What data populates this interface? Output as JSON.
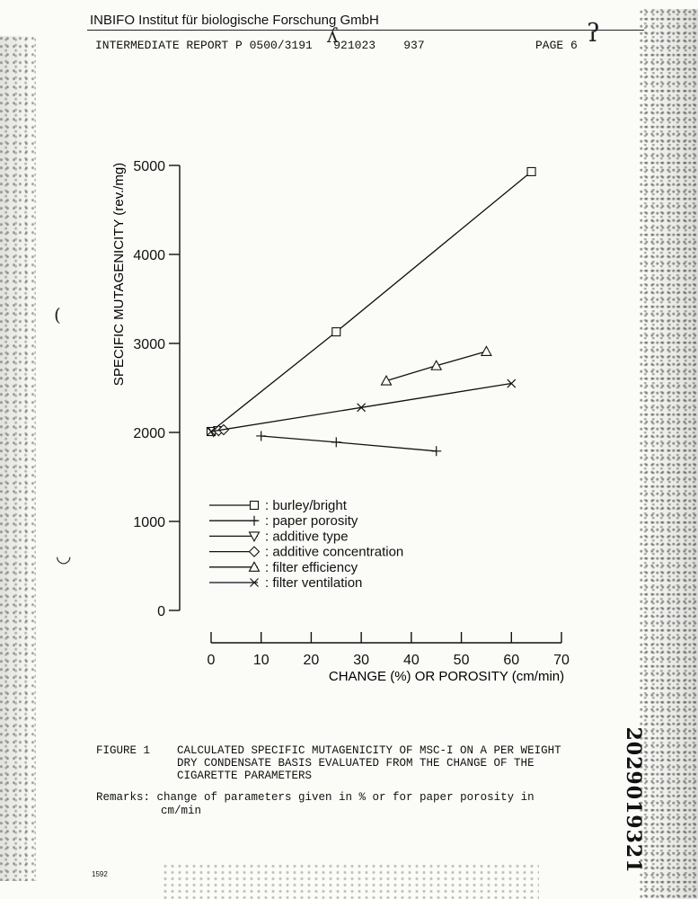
{
  "header": {
    "company": "INBIFO Institut für biologische Forschung GmbH",
    "report": "INTERMEDIATE REPORT P 0500/3191   921023    937",
    "page": "PAGE 6"
  },
  "chart_data": {
    "type": "line",
    "xlabel": "CHANGE (%) OR POROSITY (cm/min)",
    "ylabel": "SPECIFIC MUTAGENICITY (rev./mg)",
    "xlim": [
      0,
      70
    ],
    "ylim": [
      0,
      5000
    ],
    "x_ticks": [
      0,
      10,
      20,
      30,
      40,
      50,
      60,
      70
    ],
    "y_ticks": [
      0,
      1000,
      2000,
      3000,
      4000,
      5000
    ],
    "grid": false,
    "legend_position": "lower-left",
    "series": [
      {
        "name": "burley/bright",
        "marker": "square",
        "points": [
          [
            0,
            2010
          ],
          [
            25,
            3130
          ],
          [
            64,
            4930
          ]
        ]
      },
      {
        "name": "paper porosity",
        "marker": "plus",
        "points": [
          [
            10,
            1960
          ],
          [
            25,
            1890
          ],
          [
            45,
            1790
          ]
        ]
      },
      {
        "name": "additive type",
        "marker": "triangle-down",
        "points": [
          [
            0.5,
            2010
          ],
          [
            1.5,
            2020
          ]
        ]
      },
      {
        "name": "additive concentration",
        "marker": "diamond",
        "points": [
          [
            1.5,
            2020
          ],
          [
            2.5,
            2030
          ]
        ]
      },
      {
        "name": "filter efficiency",
        "marker": "triangle-up",
        "points": [
          [
            35,
            2580
          ],
          [
            45,
            2750
          ],
          [
            55,
            2910
          ]
        ]
      },
      {
        "name": "filter ventilation",
        "marker": "x",
        "points": [
          [
            0,
            2010
          ],
          [
            30,
            2280
          ],
          [
            60,
            2550
          ]
        ]
      }
    ]
  },
  "caption": {
    "label": "FIGURE 1",
    "lines": [
      "CALCULATED SPECIFIC MUTAGENICITY OF MSC-I ON A PER WEIGHT",
      "DRY CONDENSATE BASIS EVALUATED FROM THE CHANGE OF THE",
      "CIGARETTE PARAMETERS"
    ]
  },
  "remarks": {
    "line1": "Remarks: change of parameters given in % or for paper porosity in",
    "line2": "cm/min"
  },
  "footer_code": "1592",
  "doc_number": "2029019321"
}
